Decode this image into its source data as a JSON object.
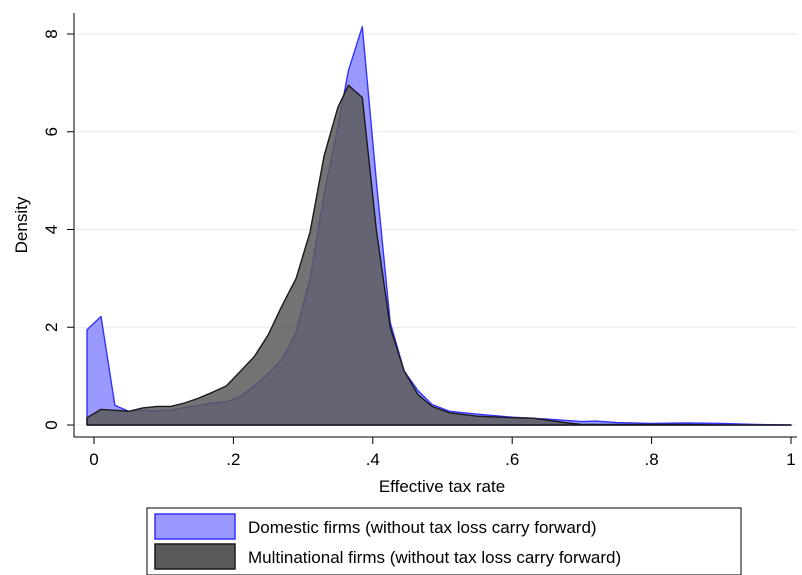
{
  "chart_data": {
    "type": "area",
    "xlabel": "Effective tax rate",
    "ylabel": "Density",
    "xlim": [
      -0.01,
      1.01
    ],
    "ylim": [
      0,
      8.4
    ],
    "xticks": [
      0,
      0.2,
      0.4,
      0.6,
      0.8,
      1
    ],
    "xtick_labels": [
      "0",
      ".2",
      ".4",
      ".6",
      ".8",
      "1"
    ],
    "yticks": [
      0,
      2,
      4,
      6,
      8
    ],
    "ytick_labels": [
      "0",
      "2",
      "4",
      "6",
      "8"
    ],
    "grid": "horizontal",
    "legend_position": "bottom",
    "series": [
      {
        "name": "Domestic firms (without tax loss carry forward)",
        "fill": "#9999ff",
        "stroke": "#3333ff",
        "x": [
          -0.01,
          0.01,
          0.03,
          0.05,
          0.07,
          0.09,
          0.11,
          0.13,
          0.15,
          0.17,
          0.19,
          0.21,
          0.23,
          0.25,
          0.27,
          0.29,
          0.31,
          0.33,
          0.35,
          0.365,
          0.385,
          0.405,
          0.425,
          0.445,
          0.465,
          0.485,
          0.51,
          0.55,
          0.6,
          0.65,
          0.7,
          0.72,
          0.75,
          0.8,
          0.85,
          0.9,
          0.95,
          1.0
        ],
        "y": [
          1.95,
          2.22,
          0.4,
          0.28,
          0.3,
          0.29,
          0.3,
          0.36,
          0.4,
          0.45,
          0.47,
          0.58,
          0.8,
          1.05,
          1.35,
          1.9,
          3.0,
          4.7,
          6.1,
          7.25,
          8.15,
          5.0,
          2.1,
          1.1,
          0.7,
          0.42,
          0.28,
          0.22,
          0.16,
          0.12,
          0.07,
          0.08,
          0.05,
          0.03,
          0.04,
          0.03,
          0.01,
          0.0
        ]
      },
      {
        "name": "Multinational firms (without tax loss carry forward)",
        "fill": "#5a5a5a",
        "stroke": "#1a1a1a",
        "x": [
          -0.01,
          0.01,
          0.03,
          0.05,
          0.07,
          0.09,
          0.11,
          0.13,
          0.15,
          0.17,
          0.19,
          0.21,
          0.23,
          0.25,
          0.27,
          0.29,
          0.31,
          0.33,
          0.35,
          0.365,
          0.385,
          0.405,
          0.425,
          0.445,
          0.465,
          0.485,
          0.51,
          0.55,
          0.6,
          0.63,
          0.65,
          0.68,
          0.7,
          0.75,
          0.8,
          0.85,
          0.9,
          0.95,
          1.0
        ],
        "y": [
          0.15,
          0.32,
          0.3,
          0.28,
          0.35,
          0.38,
          0.38,
          0.45,
          0.55,
          0.67,
          0.8,
          1.1,
          1.4,
          1.85,
          2.45,
          3.0,
          3.95,
          5.5,
          6.5,
          6.95,
          6.7,
          4.0,
          2.0,
          1.1,
          0.62,
          0.38,
          0.25,
          0.18,
          0.15,
          0.14,
          0.1,
          0.04,
          0.01,
          0.01,
          0.01,
          0.01,
          0.0,
          0.0,
          0.0
        ]
      }
    ]
  },
  "legend": {
    "items": [
      {
        "label": "Domestic firms (without tax loss carry forward)",
        "fill": "#9999ff",
        "stroke": "#3333ff"
      },
      {
        "label": "Multinational firms (without tax loss carry forward)",
        "fill": "#5a5a5a",
        "stroke": "#1a1a1a"
      }
    ]
  }
}
